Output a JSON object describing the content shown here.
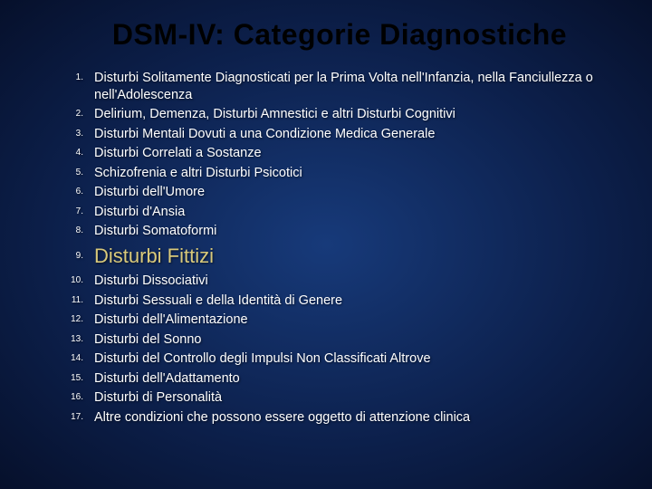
{
  "slide": {
    "title": "DSM-IV: Categorie Diagnostiche",
    "background_colors": {
      "center": "#173a7a",
      "mid": "#0c1f4a",
      "edge": "#06102b"
    },
    "title_color": "#000000",
    "title_fontsize": 32,
    "item_color": "#ffffff",
    "item_fontsize": 14.5,
    "emphasis_color": "#d9c97a",
    "emphasis_fontsize": 22,
    "emphasis_index": 9,
    "items": [
      "Disturbi Solitamente Diagnosticati per la Prima Volta nell'Infanzia, nella Fanciullezza o nell'Adolescenza",
      "Delirium, Demenza, Disturbi Amnestici e altri Disturbi Cognitivi",
      "Disturbi Mentali Dovuti a una Condizione Medica Generale",
      "Disturbi Correlati a Sostanze",
      "Schizofrenia e altri Disturbi Psicotici",
      "Disturbi dell'Umore",
      "Disturbi d'Ansia",
      "Disturbi Somatoformi",
      "Disturbi Fittizi",
      "Disturbi Dissociativi",
      "Disturbi Sessuali e della Identità di Genere",
      "Disturbi dell'Alimentazione",
      "Disturbi del Sonno",
      "Disturbi del Controllo degli Impulsi Non Classificati Altrove",
      "Disturbi dell'Adattamento",
      "Disturbi di Personalità",
      "Altre condizioni che possono essere oggetto di attenzione clinica"
    ]
  }
}
